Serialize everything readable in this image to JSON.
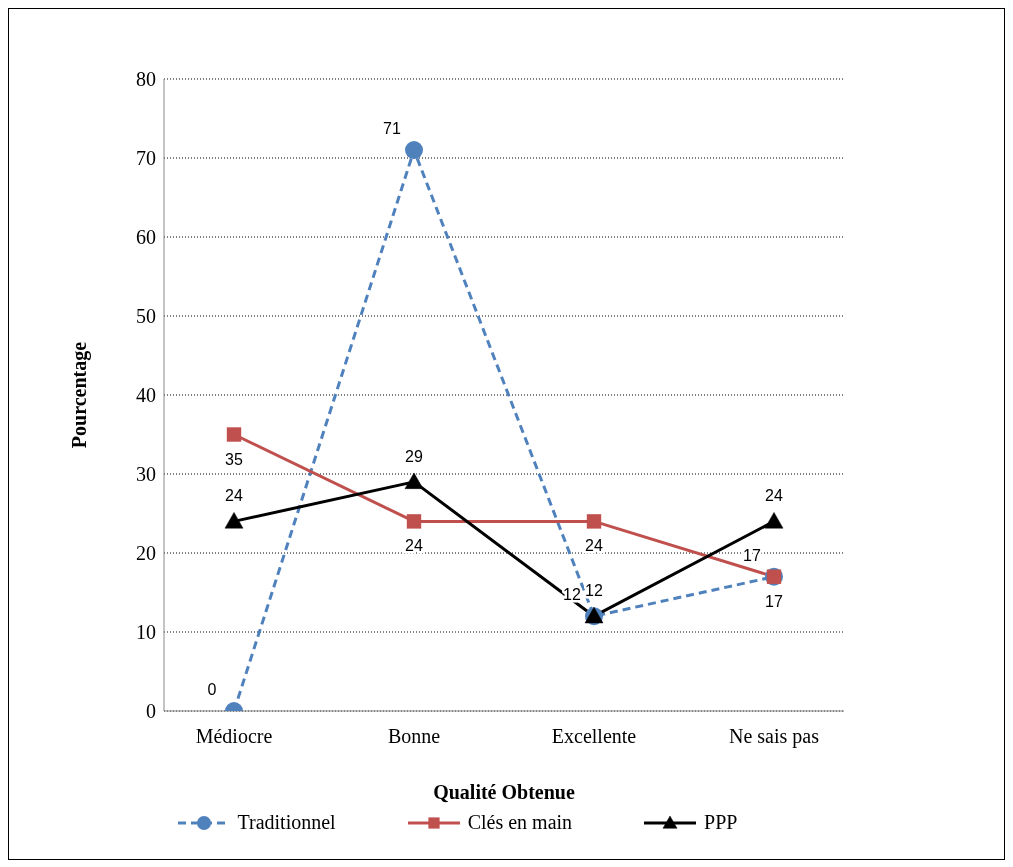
{
  "chart_data": {
    "type": "line",
    "xlabel": "Qualité Obtenue",
    "ylabel": "Pourcentage",
    "categories": [
      "Médiocre",
      "Bonne",
      "Excellente",
      "Ne sais pas"
    ],
    "series": [
      {
        "name": "Traditionnel",
        "color": "#4f81bd",
        "values": [
          0,
          71,
          12,
          17
        ],
        "marker": "circle",
        "line_style": "dashed"
      },
      {
        "name": "Clés en main",
        "color": "#c0504d",
        "values": [
          35,
          24,
          24,
          17
        ],
        "marker": "square",
        "line_style": "solid"
      },
      {
        "name": "PPP",
        "color": "#000000",
        "values": [
          24,
          29,
          12,
          24
        ],
        "marker": "triangle",
        "line_style": "solid"
      }
    ],
    "ylim": [
      0,
      80
    ],
    "yticks": [
      0,
      10,
      20,
      30,
      40,
      50,
      60,
      70,
      80
    ],
    "grid": "y",
    "legend": "bottom",
    "data_labels": true
  }
}
